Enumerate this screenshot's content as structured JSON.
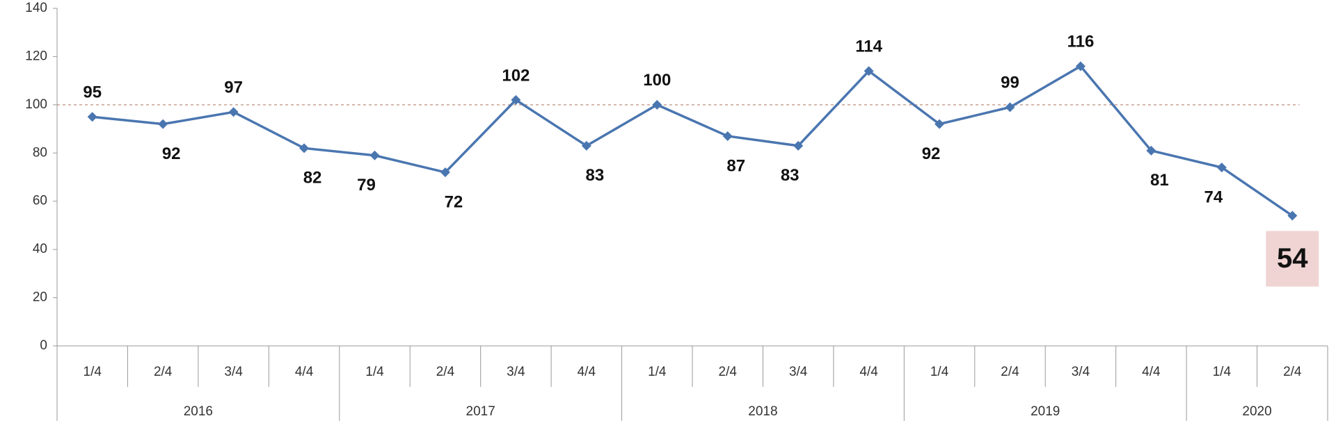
{
  "chart_data": {
    "type": "line",
    "year_groups": [
      {
        "name": "2016",
        "categories": [
          "1/4",
          "2/4",
          "3/4",
          "4/4"
        ]
      },
      {
        "name": "2017",
        "categories": [
          "1/4",
          "2/4",
          "3/4",
          "4/4"
        ]
      },
      {
        "name": "2018",
        "categories": [
          "1/4",
          "2/4",
          "3/4",
          "4/4"
        ]
      },
      {
        "name": "2019",
        "categories": [
          "1/4",
          "2/4",
          "3/4",
          "4/4"
        ]
      },
      {
        "name": "2020",
        "categories": [
          "1/4",
          "2/4"
        ]
      }
    ],
    "values": [
      95,
      92,
      97,
      82,
      79,
      72,
      102,
      83,
      100,
      87,
      83,
      114,
      92,
      99,
      116,
      81,
      74,
      54
    ],
    "color": "#4a76b0",
    "reference_line": 100,
    "reference_color": "#c8a090",
    "highlight_color": "#f0d4d4",
    "ylim": [
      0,
      140
    ],
    "yticks": [
      0,
      20,
      40,
      60,
      80,
      100,
      120,
      140
    ]
  }
}
